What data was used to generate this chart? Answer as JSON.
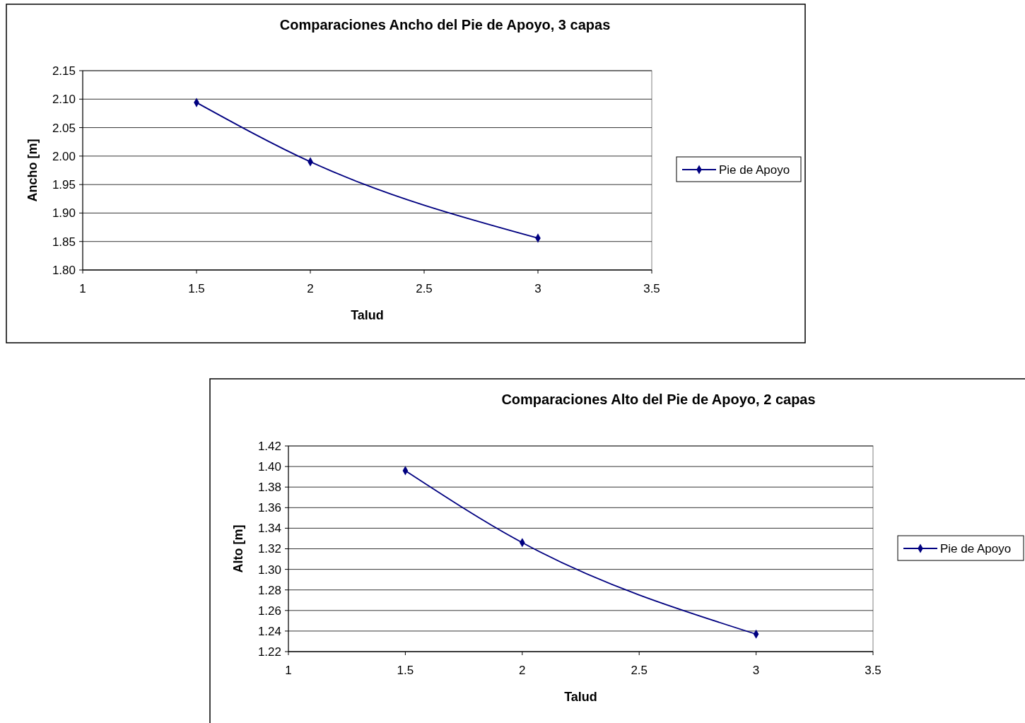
{
  "chart_data": [
    {
      "type": "line",
      "title": "Comparaciones Ancho del Pie de Apoyo, 3 capas",
      "xlabel": "Talud",
      "ylabel": "Ancho [m]",
      "x": [
        1.5,
        2,
        3
      ],
      "series": [
        {
          "name": "Pie de Apoyo",
          "color": "#000080",
          "values": [
            2.094,
            1.99,
            1.856
          ]
        }
      ],
      "xlim": [
        1,
        3.5
      ],
      "xticks": [
        1,
        1.5,
        2,
        2.5,
        3,
        3.5
      ],
      "ylim": [
        1.8,
        2.15
      ],
      "yticks": [
        {
          "value": 1.8,
          "label": "1.80"
        },
        {
          "value": 1.85,
          "label": "1.85"
        },
        {
          "value": 1.9,
          "label": "1.90"
        },
        {
          "value": 1.95,
          "label": "1.95"
        },
        {
          "value": 2,
          "label": "2.00"
        },
        {
          "value": 2.05,
          "label": "2.05"
        },
        {
          "value": 2.1,
          "label": "2.10"
        },
        {
          "value": 2.15,
          "label": "2.15"
        }
      ],
      "grid": "y",
      "legend": "right",
      "marker": "diamond"
    },
    {
      "type": "line",
      "title": "Comparaciones Alto del Pie de Apoyo, 2 capas",
      "xlabel": "Talud",
      "ylabel": "Alto [m]",
      "x": [
        1.5,
        2,
        3
      ],
      "series": [
        {
          "name": "Pie de Apoyo",
          "color": "#000080",
          "values": [
            1.396,
            1.326,
            1.237
          ]
        }
      ],
      "xlim": [
        1,
        3.5
      ],
      "xticks": [
        1,
        1.5,
        2,
        2.5,
        3,
        3.5
      ],
      "ylim": [
        1.22,
        1.42
      ],
      "yticks": [
        {
          "value": 1.22,
          "label": "1.22"
        },
        {
          "value": 1.24,
          "label": "1.24"
        },
        {
          "value": 1.26,
          "label": "1.26"
        },
        {
          "value": 1.28,
          "label": "1.28"
        },
        {
          "value": 1.3,
          "label": "1.30"
        },
        {
          "value": 1.32,
          "label": "1.32"
        },
        {
          "value": 1.34,
          "label": "1.34"
        },
        {
          "value": 1.36,
          "label": "1.36"
        },
        {
          "value": 1.38,
          "label": "1.38"
        },
        {
          "value": 1.4,
          "label": "1.40"
        },
        {
          "value": 1.42,
          "label": "1.42"
        }
      ],
      "grid": "y",
      "legend": "right",
      "marker": "diamond"
    }
  ]
}
